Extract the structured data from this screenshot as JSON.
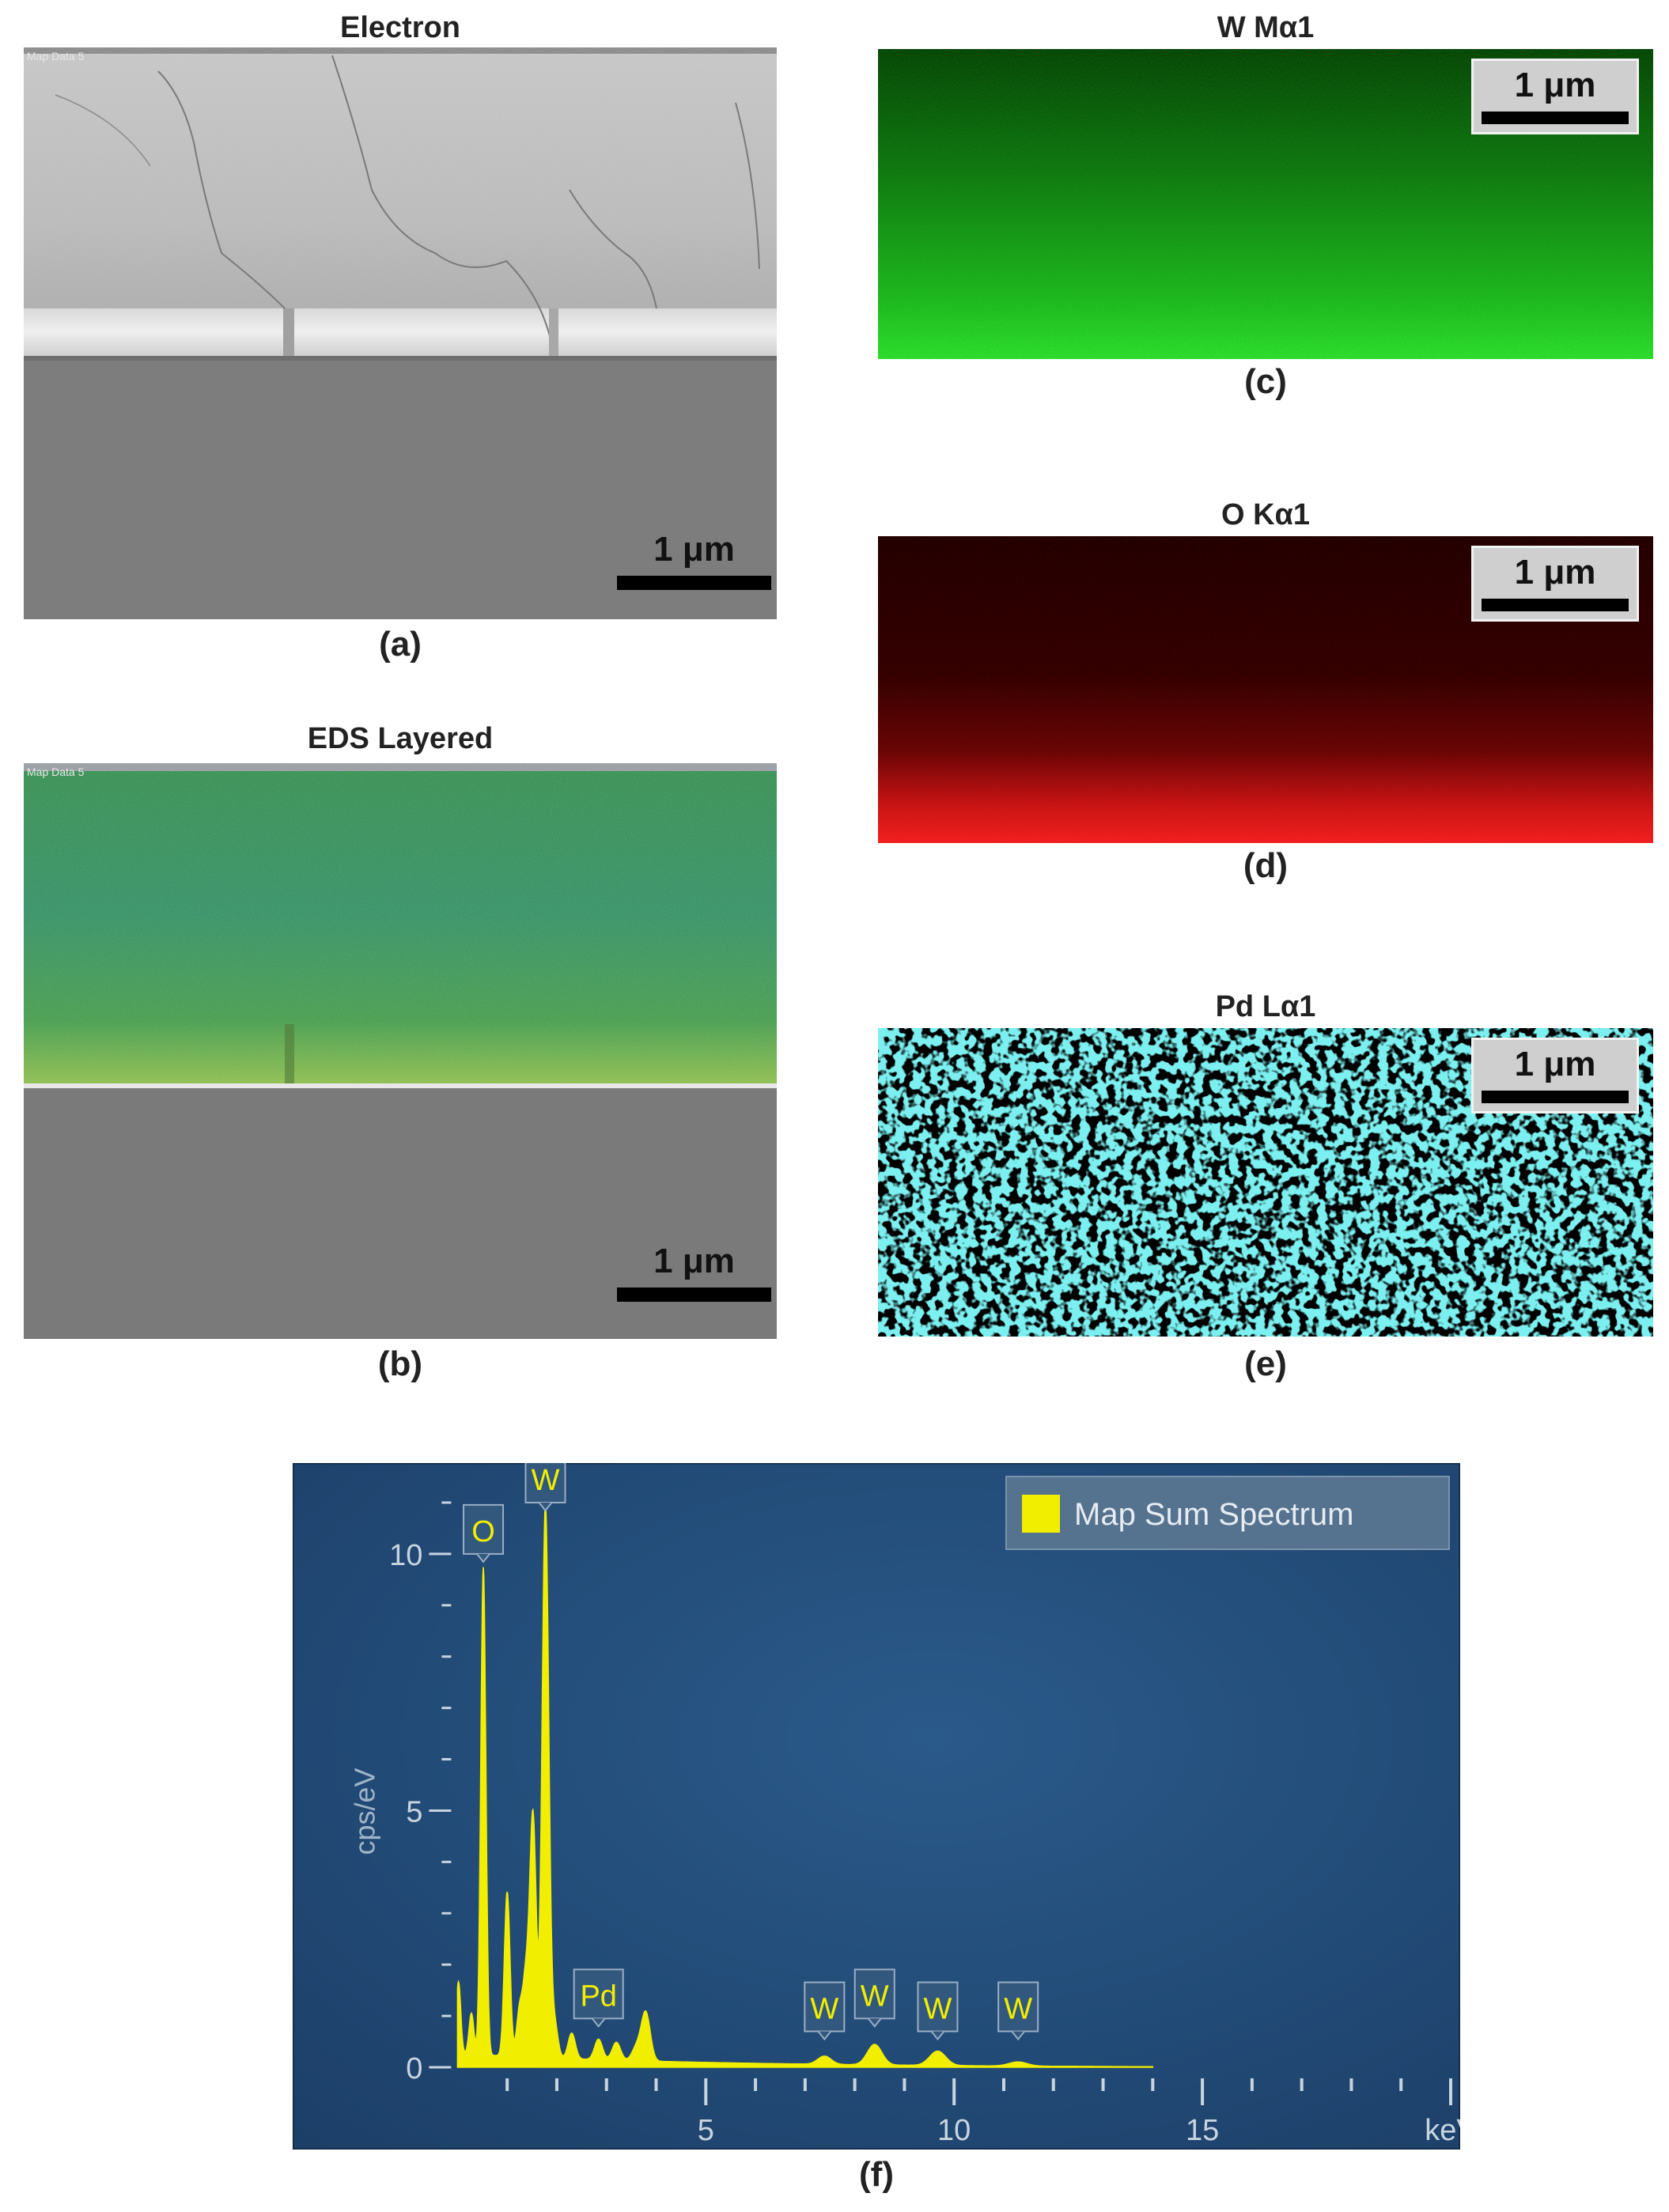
{
  "panels": {
    "a": {
      "title": "Electron",
      "caption": "(a)",
      "scale_bar": "1 μm",
      "map_label": "Map Data 5"
    },
    "b": {
      "title": "EDS Layered",
      "caption": "(b)",
      "scale_bar": "1 μm",
      "map_label": "Map Data 5"
    },
    "c": {
      "title": "W Mα1",
      "caption": "(c)",
      "scale_bar": "1 μm",
      "color": "#2ee82e"
    },
    "d": {
      "title": "O Kα1",
      "caption": "(d)",
      "scale_bar": "1 μm",
      "color": "#ff2a2a"
    },
    "e": {
      "title": "Pd Lα1",
      "caption": "(e)",
      "scale_bar": "1 μm",
      "color": "#33dede"
    },
    "f": {
      "caption": "(f)"
    }
  },
  "chart_data": {
    "type": "line",
    "legend": "Map Sum Spectrum",
    "legend_position": "top-right",
    "series_color": "#f2ee00",
    "background_color": "#1e4470",
    "xlabel": "keV",
    "ylabel": "cps/eV",
    "xlim": [
      -0.5,
      20
    ],
    "ylim": [
      0,
      11.2
    ],
    "x_ticks": [
      "5",
      "10",
      "15"
    ],
    "y_ticks": [
      "0",
      "5",
      "10"
    ],
    "series": [
      {
        "peaks": [
          {
            "x": 0.02,
            "y": 1.4
          },
          {
            "x": 0.28,
            "y": 0.8
          },
          {
            "x": 0.52,
            "y": 9.5
          },
          {
            "x": 1.0,
            "y": 3.2
          },
          {
            "x": 1.25,
            "y": 0.9
          },
          {
            "x": 1.38,
            "y": 1.5
          },
          {
            "x": 1.52,
            "y": 4.7
          },
          {
            "x": 1.77,
            "y": 10.8
          },
          {
            "x": 1.95,
            "y": 0.7
          },
          {
            "x": 2.3,
            "y": 0.5
          },
          {
            "x": 2.84,
            "y": 0.4
          },
          {
            "x": 3.2,
            "y": 0.35
          },
          {
            "x": 3.6,
            "y": 0.25
          },
          {
            "x": 3.79,
            "y": 0.95
          },
          {
            "x": 7.39,
            "y": 0.16
          },
          {
            "x": 8.4,
            "y": 0.4
          },
          {
            "x": 9.67,
            "y": 0.28
          },
          {
            "x": 11.29,
            "y": 0.08
          }
        ]
      }
    ],
    "peak_labels": [
      {
        "label": "O",
        "x": 0.52,
        "y": 10.0
      },
      {
        "label": "W",
        "x": 1.77,
        "y": 11.0
      },
      {
        "label": "Pd",
        "x": 2.84,
        "y": 0.95
      },
      {
        "label": "W",
        "x": 7.39,
        "y": 0.7
      },
      {
        "label": "W",
        "x": 8.4,
        "y": 0.95
      },
      {
        "label": "W",
        "x": 9.67,
        "y": 0.7
      },
      {
        "label": "W",
        "x": 11.29,
        "y": 0.7
      }
    ]
  }
}
